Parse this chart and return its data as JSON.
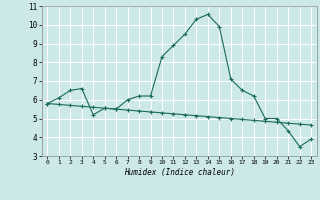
{
  "xlabel": "Humidex (Indice chaleur)",
  "background_color": "#cce8e8",
  "grid_color": "#ffffff",
  "line_color": "#1a6b5a",
  "xlim": [
    -0.5,
    23.5
  ],
  "ylim": [
    3,
    11
  ],
  "yticks": [
    3,
    4,
    5,
    6,
    7,
    8,
    9,
    10,
    11
  ],
  "xticks": [
    0,
    1,
    2,
    3,
    4,
    5,
    6,
    7,
    8,
    9,
    10,
    11,
    12,
    13,
    14,
    15,
    16,
    17,
    18,
    19,
    20,
    21,
    22,
    23
  ],
  "series1_x": [
    0,
    1,
    2,
    3,
    4,
    5,
    6,
    7,
    8,
    9,
    10,
    11,
    12,
    13,
    14,
    15,
    16,
    17,
    18,
    19,
    20,
    21,
    22,
    23
  ],
  "series1_y": [
    5.8,
    6.1,
    6.5,
    6.6,
    5.2,
    5.55,
    5.5,
    6.0,
    6.2,
    6.2,
    8.3,
    8.9,
    9.5,
    10.3,
    10.55,
    9.9,
    7.1,
    6.5,
    6.2,
    5.0,
    5.0,
    4.35,
    3.5,
    3.9
  ],
  "series2_x": [
    0,
    1,
    2,
    3,
    4,
    5,
    6,
    7,
    8,
    9,
    10,
    11,
    12,
    13,
    14,
    15,
    16,
    17,
    18,
    19,
    20,
    21,
    22,
    23
  ],
  "series2_y": [
    5.8,
    5.75,
    5.7,
    5.65,
    5.6,
    5.55,
    5.5,
    5.45,
    5.4,
    5.35,
    5.3,
    5.25,
    5.2,
    5.15,
    5.1,
    5.05,
    5.0,
    4.95,
    4.9,
    4.85,
    4.8,
    4.75,
    4.7,
    4.65
  ]
}
